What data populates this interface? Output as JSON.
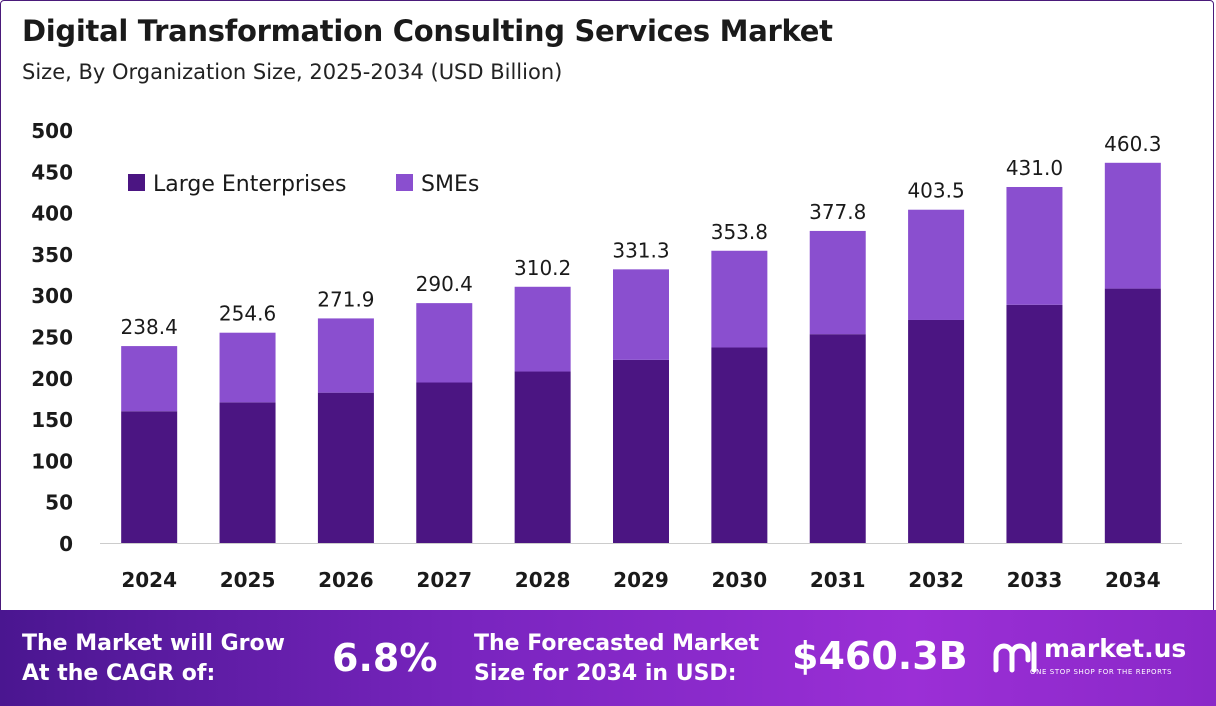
{
  "chart_data": {
    "type": "bar",
    "stacked": true,
    "title": "Digital Transformation Consulting Services Market",
    "subtitle": "Size, By Organization Size, 2025-2034 (USD Billion)",
    "categories": [
      "2024",
      "2025",
      "2026",
      "2027",
      "2028",
      "2029",
      "2030",
      "2031",
      "2032",
      "2033",
      "2034"
    ],
    "series": [
      {
        "name": "Large Enterprises",
        "color": "#4b1582",
        "values": [
          159.5,
          170.3,
          182.0,
          194.3,
          207.6,
          221.7,
          236.7,
          252.8,
          270.0,
          288.4,
          308.0
        ]
      },
      {
        "name": "SMEs",
        "color": "#8a4fcf",
        "values": [
          78.9,
          84.3,
          89.9,
          96.1,
          102.6,
          109.6,
          117.1,
          125.0,
          133.5,
          142.6,
          152.3
        ]
      }
    ],
    "totals": [
      "238.4",
      "254.6",
      "271.9",
      "290.4",
      "310.2",
      "331.3",
      "353.8",
      "377.8",
      "403.5",
      "431.0",
      "460.3"
    ],
    "yticks": [
      0,
      50,
      100,
      150,
      200,
      250,
      300,
      350,
      400,
      450,
      500
    ],
    "ylim": [
      0,
      500
    ],
    "grid": false,
    "legend_position": "top-left"
  },
  "footer": {
    "cagr_label_line1": "The Market will Grow",
    "cagr_label_line2": "At the CAGR of:",
    "cagr_value": "6.8%",
    "forecast_label_line1": "The Forecasted Market",
    "forecast_label_line2": "Size for 2034 in USD:",
    "forecast_value": "$460.3B",
    "brand_name": "market.us",
    "brand_tagline": "ONE STOP SHOP FOR THE REPORTS"
  }
}
